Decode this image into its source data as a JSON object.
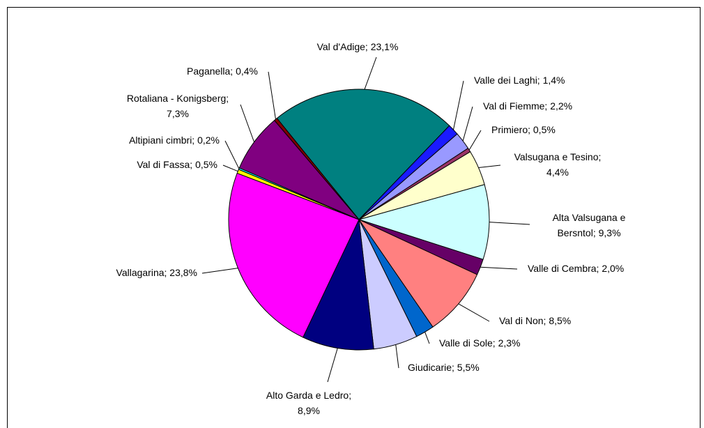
{
  "chart_data": {
    "type": "pie",
    "values": [
      23.1,
      1.4,
      2.2,
      0.5,
      4.4,
      9.3,
      2.0,
      8.5,
      2.3,
      5.5,
      8.9,
      23.8,
      0.5,
      0.2,
      7.3,
      0.4
    ],
    "value_labels": [
      "Val d'Adige; 23,1%",
      "Valle dei Laghi; 1,4%",
      "Val di Fiemme; 2,2%",
      "Primiero; 0,5%",
      "Valsugana e Tesino;\n4,4%",
      "Alta Valsugana e\nBersntol; 9,3%",
      "Valle di Cembra; 2,0%",
      "Val di Non; 8,5%",
      "Valle di Sole; 2,3%",
      "Giudicarie; 5,5%",
      "Alto Garda e Ledro;\n8,9%",
      "Vallagarina; 23,8%",
      "Val di Fassa; 0,5%",
      "Altipiani cimbri; 0,2%",
      "Rotaliana - Konigsberg;\n7,3%",
      "Paganella; 0,4%"
    ],
    "colors": [
      "#008080",
      "#1a1aff",
      "#9999ff",
      "#993366",
      "#ffffcc",
      "#ccffff",
      "#660066",
      "#ff8080",
      "#0066cc",
      "#ccccff",
      "#000080",
      "#ff00ff",
      "#ffff00",
      "#00ffff",
      "#800080",
      "#800000"
    ]
  }
}
